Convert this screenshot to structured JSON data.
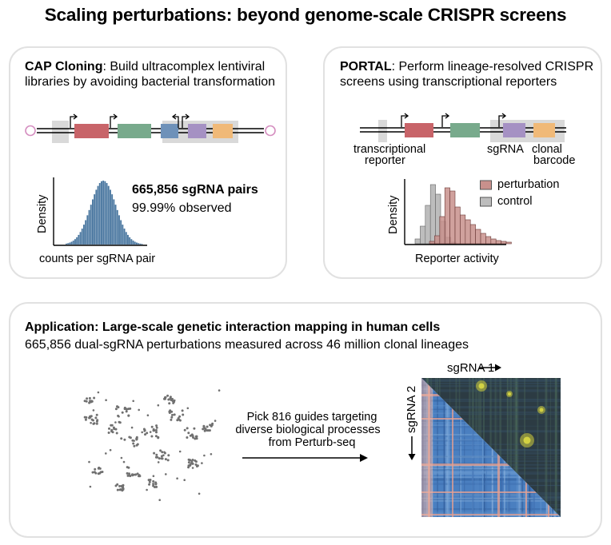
{
  "title": "Scaling perturbations: beyond genome-scale CRISPR screens",
  "cap": {
    "heading": "CAP Cloning",
    "description": ": Build ultracomplex lentiviral libraries by avoiding bacterial transformation",
    "stat_main": "665,856 sgRNA pairs",
    "stat_sub": "99.99% observed",
    "ylabel": "Density",
    "xlabel": "counts per sgRNA pair",
    "colors": {
      "red": "#c86469",
      "green": "#78aa8c",
      "blue": "#6e91b9",
      "purple": "#a591c3",
      "orange": "#f0b978",
      "hist": "#4a77a0"
    }
  },
  "portal": {
    "heading": "PORTAL",
    "description": ": Perform lineage-resolved CRISPR screens using transcriptional reporters",
    "label_reporter_1": "transcriptional",
    "label_reporter_2": "reporter",
    "label_sgrna": "sgRNA",
    "label_barcode_1": "clonal",
    "label_barcode_2": "barcode",
    "legend_perturbation": "perturbation",
    "legend_control": "control",
    "ylabel": "Density",
    "xlabel": "Reporter activity",
    "colors": {
      "perturbation": "#c8908c",
      "control": "#bdbdbd"
    }
  },
  "application": {
    "heading": "Application: Large-scale genetic interaction mapping in human cells",
    "subheading": "665,856 dual-sgRNA perturbations measured across 46 million clonal lineages",
    "arrow_text_1": "Pick 816 guides targeting",
    "arrow_text_2": "diverse biological processes",
    "arrow_text_3": "from Perturb-seq",
    "axis_sgrna1": "sgRNA 1",
    "axis_sgrna2": "sgRNA 2"
  }
}
